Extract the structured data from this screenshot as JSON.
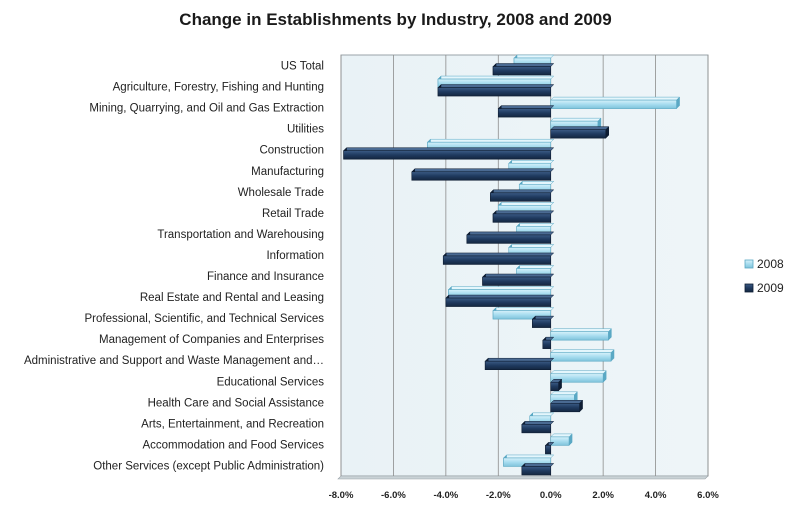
{
  "chart_data": {
    "type": "bar",
    "orientation": "horizontal",
    "title": "Change in Establishments by Industry, 2008 and 2009",
    "xlabel": "",
    "ylabel": "",
    "xlim": [
      -0.08,
      0.06
    ],
    "x_ticks": [
      "-8.0%",
      "-6.0%",
      "-4.0%",
      "-2.0%",
      "0.0%",
      "2.0%",
      "4.0%",
      "6.0%"
    ],
    "x_tick_values": [
      -0.08,
      -0.06,
      -0.04,
      -0.02,
      0,
      0.02,
      0.04,
      0.06
    ],
    "grid": true,
    "legend_position": "right",
    "categories": [
      "US Total",
      "Agriculture, Forestry, Fishing and Hunting",
      "Mining, Quarrying, and Oil and Gas Extraction",
      "Utilities",
      "Construction",
      "Manufacturing",
      "Wholesale Trade",
      "Retail Trade",
      "Transportation and Warehousing",
      "Information",
      "Finance and Insurance",
      "Real Estate and Rental and Leasing",
      "Professional, Scientific, and Technical Services",
      "Management of Companies and Enterprises",
      "Administrative and Support and Waste Management and…",
      "Educational Services",
      "Health Care and Social Assistance",
      "Arts, Entertainment, and Recreation",
      "Accommodation and Food Services",
      "Other Services (except Public Administration)"
    ],
    "series": [
      {
        "name": "2008",
        "color": "#a6dcef",
        "values": [
          -0.014,
          -0.043,
          0.048,
          0.018,
          -0.047,
          -0.016,
          -0.012,
          -0.02,
          -0.013,
          -0.016,
          -0.013,
          -0.039,
          -0.022,
          0.022,
          0.023,
          0.02,
          0.009,
          -0.008,
          0.007,
          -0.018
        ]
      },
      {
        "name": "2009",
        "color": "#1f3a5f",
        "values": [
          -0.022,
          -0.043,
          -0.02,
          0.021,
          -0.079,
          -0.053,
          -0.023,
          -0.022,
          -0.032,
          -0.041,
          -0.026,
          -0.04,
          -0.007,
          -0.003,
          -0.025,
          0.003,
          0.011,
          -0.011,
          -0.002,
          -0.011
        ]
      }
    ]
  }
}
